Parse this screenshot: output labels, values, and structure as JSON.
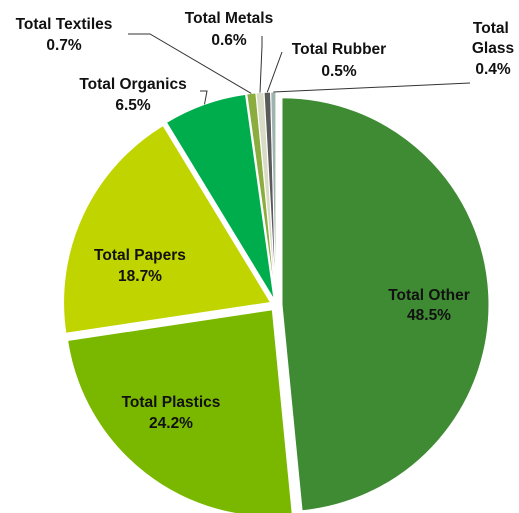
{
  "chart_data": {
    "type": "pie",
    "title": "",
    "slices": [
      {
        "name": "Total Other",
        "value": 48.5,
        "label": "48.5%",
        "color": "#3f8b33"
      },
      {
        "name": "Total Plastics",
        "value": 24.2,
        "label": "24.2%",
        "color": "#7ab800"
      },
      {
        "name": "Total Papers",
        "value": 18.7,
        "label": "18.7%",
        "color": "#c0d400"
      },
      {
        "name": "Total Organics",
        "value": 6.5,
        "label": "6.5%",
        "color": "#00ad4d"
      },
      {
        "name": "Total Textiles",
        "value": 0.7,
        "label": "0.7%",
        "color": "#8bac3e"
      },
      {
        "name": "Total Metals",
        "value": 0.6,
        "label": "0.6%",
        "color": "#d8dcc4"
      },
      {
        "name": "Total Rubber",
        "value": 0.5,
        "label": "0.5%",
        "color": "#5a5a5a"
      },
      {
        "name": "Total Glass",
        "value": 0.4,
        "label": "0.4%",
        "color": "#9fb4ad"
      }
    ],
    "start": "top",
    "direction": "clockwise",
    "exploded": true,
    "legend": "none"
  }
}
